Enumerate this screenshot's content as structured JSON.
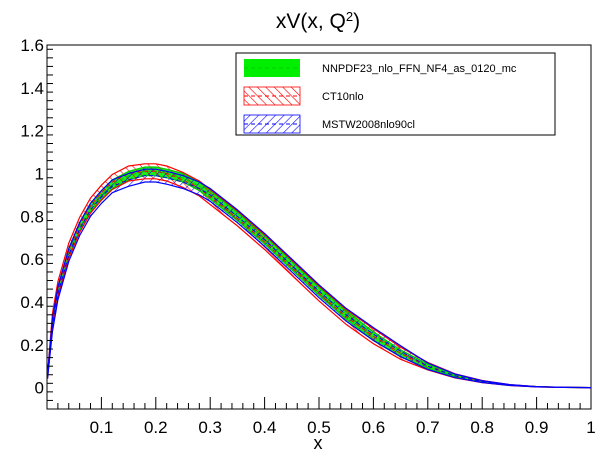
{
  "chart_data": {
    "type": "line",
    "title": "xV(x, Q",
    "title_sup": "2",
    "title_close": ")",
    "xlabel": "x",
    "ylabel": "",
    "xlim": [
      0,
      1
    ],
    "ylim": [
      -0.1,
      1.6
    ],
    "xticks": [
      "0.1",
      "0.2",
      "0.3",
      "0.4",
      "0.5",
      "0.6",
      "0.7",
      "0.8",
      "0.9",
      "1"
    ],
    "yticks": [
      "0",
      "0.2",
      "0.4",
      "0.6",
      "0.8",
      "1",
      "1.2",
      "1.4",
      "1.6"
    ],
    "x": [
      0.001,
      0.01,
      0.02,
      0.04,
      0.06,
      0.08,
      0.1,
      0.12,
      0.15,
      0.18,
      0.2,
      0.22,
      0.25,
      0.28,
      0.3,
      0.35,
      0.4,
      0.45,
      0.5,
      0.55,
      0.6,
      0.65,
      0.7,
      0.75,
      0.8,
      0.85,
      0.9,
      0.95,
      1.0
    ],
    "series": [
      {
        "name": "NNPDF23_nlo_FFN_NF4_as_0120_mc",
        "color": "#00cc00",
        "style": "solid-band",
        "values": [
          0.05,
          0.3,
          0.45,
          0.63,
          0.75,
          0.84,
          0.9,
          0.95,
          0.99,
          1.01,
          1.01,
          1.0,
          0.98,
          0.94,
          0.9,
          0.8,
          0.69,
          0.57,
          0.45,
          0.34,
          0.24,
          0.16,
          0.1,
          0.055,
          0.028,
          0.012,
          0.004,
          0.001,
          0.0
        ],
        "band": 0.02
      },
      {
        "name": "CT10nlo",
        "color": "#ff0000",
        "style": "hatch-red",
        "values": [
          0.05,
          0.31,
          0.46,
          0.64,
          0.76,
          0.85,
          0.91,
          0.96,
          1.0,
          1.01,
          1.01,
          1.0,
          0.97,
          0.93,
          0.89,
          0.79,
          0.68,
          0.56,
          0.44,
          0.33,
          0.24,
          0.16,
          0.1,
          0.055,
          0.028,
          0.012,
          0.004,
          0.001,
          0.0
        ],
        "band": 0.035
      },
      {
        "name": "MSTW2008nlo90cl",
        "color": "#0000ff",
        "style": "hatch-blue",
        "values": [
          0.05,
          0.29,
          0.44,
          0.62,
          0.74,
          0.83,
          0.89,
          0.94,
          0.97,
          0.99,
          0.99,
          0.98,
          0.96,
          0.93,
          0.9,
          0.8,
          0.69,
          0.57,
          0.45,
          0.34,
          0.25,
          0.17,
          0.1,
          0.055,
          0.028,
          0.012,
          0.004,
          0.001,
          0.0
        ],
        "band": 0.03
      }
    ],
    "legend_position": "top-right"
  }
}
